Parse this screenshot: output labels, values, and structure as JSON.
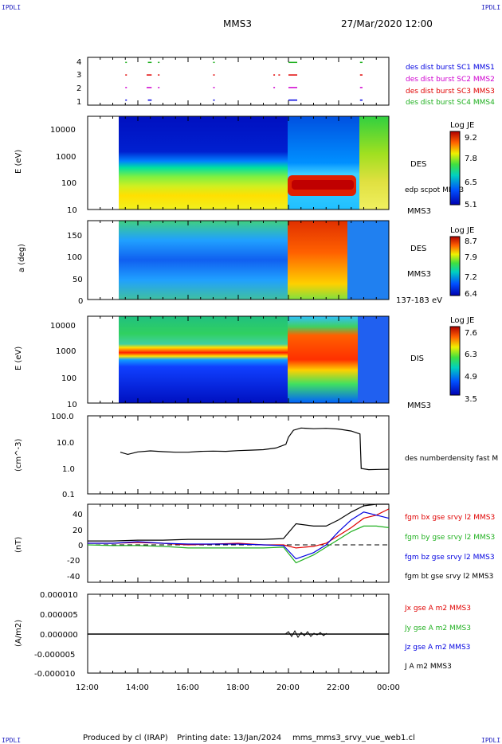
{
  "header": {
    "corner_label": "IPDLI",
    "spacecraft": "MMS3",
    "datetime": "27/Mar/2020 12:00"
  },
  "footer": {
    "produced_by": "Produced by cl (IRAP)",
    "printing_date": "Printing date: 13/Jan/2024",
    "filename": "mms_mms3_srvy_vue_web1.cl"
  },
  "colors": {
    "red": "#e00000",
    "green": "#20b020",
    "blue": "#0000e0",
    "magenta": "#d000d0",
    "black": "#000000"
  },
  "chart_data": [
    {
      "type": "scatter",
      "panel": "burst availability",
      "x_ticks": [
        "12:00",
        "14:00",
        "16:00",
        "18:00",
        "20:00",
        "22:00",
        "00:00"
      ],
      "y_ticks": [
        "1",
        "2",
        "3",
        "4"
      ],
      "ylim": [
        0.6,
        4.4
      ],
      "legend": [
        "des dist burst SC1 MMS1",
        "des dist burst SC2 MMS2",
        "des dist burst SC3 MMS3",
        "des dist burst SC4 MMS4"
      ],
      "series": [
        {
          "y": 1,
          "color": "#0000e0",
          "intervals": [
            [
              13.5,
              13.55
            ],
            [
              14.4,
              14.55
            ],
            [
              17.0,
              17.05
            ],
            [
              20.0,
              20.35
            ],
            [
              22.85,
              22.95
            ]
          ]
        },
        {
          "y": 2,
          "color": "#d000d0",
          "intervals": [
            [
              13.5,
              13.55
            ],
            [
              14.35,
              14.55
            ],
            [
              14.8,
              14.82
            ],
            [
              17.0,
              17.05
            ],
            [
              19.4,
              19.45
            ],
            [
              20.0,
              20.35
            ],
            [
              22.85,
              22.95
            ]
          ]
        },
        {
          "y": 3,
          "color": "#e00000",
          "intervals": [
            [
              13.5,
              13.55
            ],
            [
              14.35,
              14.55
            ],
            [
              14.8,
              14.82
            ],
            [
              17.0,
              17.05
            ],
            [
              19.4,
              19.42
            ],
            [
              19.6,
              19.62
            ],
            [
              20.0,
              20.35
            ],
            [
              22.85,
              22.95
            ]
          ]
        },
        {
          "y": 4,
          "color": "#20b020",
          "intervals": [
            [
              13.5,
              13.55
            ],
            [
              14.4,
              14.55
            ],
            [
              14.8,
              14.82
            ],
            [
              17.0,
              17.05
            ],
            [
              20.0,
              20.35
            ],
            [
              22.85,
              22.95
            ]
          ]
        }
      ]
    },
    {
      "type": "heatmap",
      "panel": "DES energy",
      "ylabel": "E (eV)",
      "y_ticks": [
        "10",
        "100",
        "1000",
        "10000"
      ],
      "colorbar_title": "Log JE",
      "colorbar_ticks": [
        "9.2",
        "7.8",
        "6.5",
        "5.1"
      ],
      "labels": [
        "DES",
        "edp scpot MMS3",
        "MMS3"
      ]
    },
    {
      "type": "heatmap",
      "panel": "DES pitch angle",
      "ylabel": "a (deg)",
      "y_ticks": [
        "0",
        "50",
        "100",
        "150"
      ],
      "colorbar_title": "Log JE",
      "colorbar_ticks": [
        "8.7",
        "7.9",
        "7.2",
        "6.4"
      ],
      "labels": [
        "DES",
        "MMS3",
        "137-183 eV"
      ]
    },
    {
      "type": "heatmap",
      "panel": "DIS energy",
      "ylabel": "E (eV)",
      "y_ticks": [
        "10",
        "100",
        "1000",
        "10000"
      ],
      "colorbar_title": "Log JE",
      "colorbar_ticks": [
        "7.6",
        "6.3",
        "4.9",
        "3.5"
      ],
      "labels": [
        "DIS",
        "MMS3"
      ]
    },
    {
      "type": "line",
      "panel": "density",
      "ylabel": "(cm^-3)",
      "y_ticks": [
        "0.1",
        "1.0",
        "10.0",
        "100.0"
      ],
      "yscale": "log",
      "ylim": [
        0.1,
        100
      ],
      "legend": [
        "des numberdensity fast M"
      ],
      "series": [
        {
          "name": "des numberdensity fast M",
          "color": "#000000",
          "x": [
            13.3,
            13.6,
            14.0,
            14.5,
            15.0,
            15.5,
            16.0,
            16.5,
            17.0,
            17.5,
            18.0,
            18.5,
            19.0,
            19.5,
            19.9,
            20.0,
            20.2,
            20.5,
            21.0,
            21.5,
            22.0,
            22.5,
            22.85,
            22.9,
            23.2,
            23.6,
            24.0
          ],
          "y": [
            4.0,
            3.3,
            4.1,
            4.5,
            4.2,
            4.0,
            4.0,
            4.3,
            4.4,
            4.3,
            4.6,
            4.8,
            5.0,
            5.8,
            8.0,
            15.0,
            28.0,
            34.0,
            32.0,
            33.0,
            31.0,
            26.0,
            20.0,
            0.95,
            0.85,
            0.87,
            0.88
          ]
        }
      ]
    },
    {
      "type": "line",
      "panel": "magnetic field",
      "ylabel": "(nT)",
      "y_ticks": [
        "-40",
        "-20",
        "0",
        "20",
        "40"
      ],
      "ylim": [
        -50,
        50
      ],
      "legend": [
        "fgm bx gse srvy l2 MMS3",
        "fgm by gse srvy l2 MMS3",
        "fgm bz gse srvy l2 MMS3",
        "fgm bt gse srvy l2 MMS3"
      ],
      "series": [
        {
          "name": "fgm bx gse srvy l2 MMS3",
          "color": "#e00000",
          "x": [
            12.0,
            13.0,
            14.0,
            15.0,
            16.0,
            17.0,
            18.0,
            19.0,
            19.8,
            20.3,
            21.0,
            21.5,
            22.0,
            22.5,
            23.0,
            23.5,
            24.0
          ],
          "y": [
            0,
            0,
            1,
            0,
            -2,
            -1,
            0,
            -2,
            -2,
            -6,
            -4,
            0,
            10,
            20,
            32,
            36,
            44
          ]
        },
        {
          "name": "fgm by gse srvy l2 MMS3",
          "color": "#20b020",
          "x": [
            12.0,
            13.0,
            14.0,
            15.0,
            16.0,
            17.0,
            18.0,
            19.0,
            19.8,
            20.3,
            21.0,
            21.5,
            22.0,
            22.5,
            23.0,
            23.5,
            24.0
          ],
          "y": [
            -2,
            -3,
            -3,
            -4,
            -6,
            -6,
            -6,
            -6,
            -5,
            -25,
            -15,
            -5,
            5,
            15,
            22,
            22,
            20
          ]
        },
        {
          "name": "fgm bz gse srvy l2 MMS3",
          "color": "#0000e0",
          "x": [
            12.0,
            13.0,
            14.0,
            15.0,
            16.0,
            17.0,
            18.0,
            19.0,
            19.8,
            20.3,
            21.0,
            21.5,
            22.0,
            22.5,
            23.0,
            23.5,
            24.0
          ],
          "y": [
            0,
            0,
            2,
            0,
            -1,
            -1,
            -1,
            -2,
            -3,
            -20,
            -12,
            -2,
            15,
            30,
            40,
            36,
            32
          ]
        },
        {
          "name": "fgm bt gse srvy l2 MMS3",
          "color": "#000000",
          "x": [
            12.0,
            13.0,
            14.0,
            15.0,
            16.0,
            17.0,
            18.0,
            19.0,
            19.8,
            20.3,
            21.0,
            21.5,
            22.0,
            22.5,
            23.0,
            23.5,
            24.0
          ],
          "y": [
            3,
            3,
            4,
            4,
            5,
            5,
            5,
            5,
            6,
            25,
            22,
            22,
            30,
            40,
            48,
            50,
            50
          ]
        }
      ]
    },
    {
      "type": "line",
      "panel": "current density",
      "ylabel": "(A/m2)",
      "y_ticks": [
        "-0.000010",
        "-0.000005",
        "0.000000",
        "0.000005",
        "0.000010"
      ],
      "ylim": [
        -1e-05,
        1e-05
      ],
      "legend": [
        "Jx gse A m2 MMS3",
        "Jy gse A m2 MMS3",
        "Jz gse A m2 MMS3",
        "J A m2 MMS3"
      ],
      "series": [
        {
          "name": "Jx gse A m2 MMS3",
          "color": "#e00000"
        },
        {
          "name": "Jy gse A m2 MMS3",
          "color": "#20b020"
        },
        {
          "name": "Jz gse A m2 MMS3",
          "color": "#0000e0"
        },
        {
          "name": "J A m2 MMS3",
          "color": "#000000"
        }
      ]
    }
  ]
}
